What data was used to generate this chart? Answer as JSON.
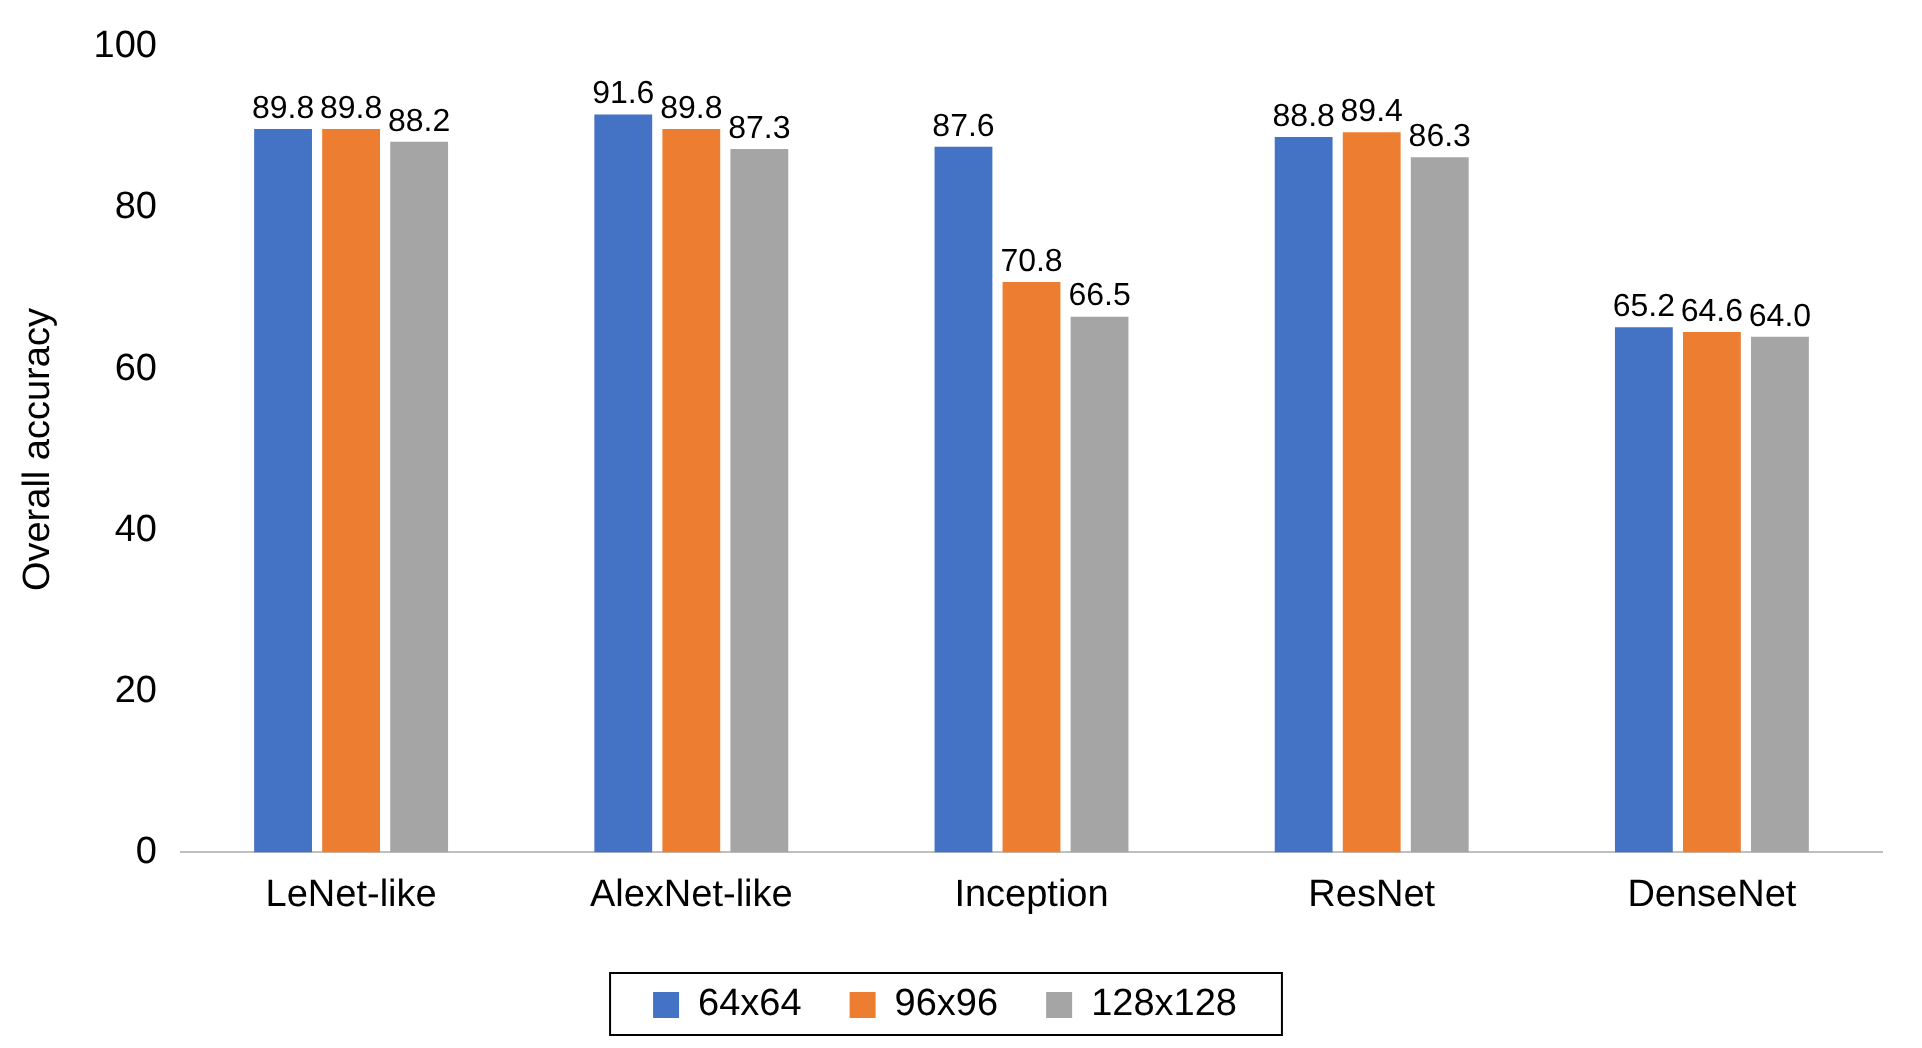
{
  "chart_data": {
    "type": "bar",
    "ylabel": "Overall accuracy",
    "categories": [
      "LeNet-like",
      "AlexNet-like",
      "Inception",
      "ResNet",
      "DenseNet"
    ],
    "series": [
      {
        "name": "64x64",
        "color": "#4472c4",
        "values": [
          89.8,
          91.6,
          87.6,
          88.8,
          65.2
        ],
        "value_labels": [
          "89.8",
          "91.6",
          "87.6",
          "88.8",
          "65.2"
        ]
      },
      {
        "name": "96x96",
        "color": "#ed7d31",
        "values": [
          89.8,
          89.8,
          70.8,
          89.4,
          64.6
        ],
        "value_labels": [
          "89.8",
          "89.8",
          "70.8",
          "89.4",
          "64.6"
        ]
      },
      {
        "name": "128x128",
        "color": "#a5a5a5",
        "values": [
          88.2,
          87.3,
          66.5,
          86.3,
          64.0
        ],
        "value_labels": [
          "88.2",
          "87.3",
          "66.5",
          "86.3",
          "64.0"
        ]
      }
    ],
    "ylim": [
      0,
      100
    ],
    "yticks": [
      0,
      20,
      40,
      60,
      80,
      100
    ],
    "legend": "bottom",
    "grid": false
  }
}
